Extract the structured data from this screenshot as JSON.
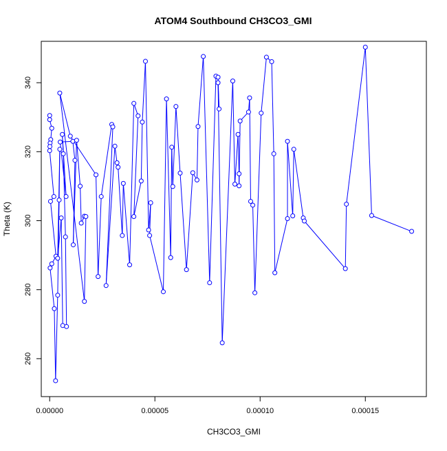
{
  "chart_data": {
    "type": "line",
    "title": "ATOM4 Southbound CH3CO3_GMI",
    "xlabel": "CH3CO3_GMI",
    "ylabel": "Theta (K)",
    "xlim": [
      -4e-06,
      0.000179
    ],
    "ylim": [
      249,
      352
    ],
    "x_ticks": [
      0,
      5e-05,
      0.0001,
      0.00015
    ],
    "x_tick_labels": [
      "0.00000",
      "0.00005",
      "0.00010",
      "0.00015"
    ],
    "y_ticks": [
      260,
      280,
      300,
      320,
      340
    ],
    "y_tick_labels": [
      "260",
      "280",
      "300",
      "320",
      "340"
    ],
    "grid": false,
    "series": [
      {
        "color": "#0000ff",
        "marker": "open-circle",
        "line": true,
        "points": [
          [
            0.0,
            330.5
          ],
          [
            0.0,
            329.3
          ],
          [
            1e-06,
            326.8
          ],
          [
            5e-07,
            323.5
          ],
          [
            2e-07,
            322.5
          ],
          [
            1e-07,
            321.5
          ],
          [
            0.0,
            320.3
          ],
          [
            2e-06,
            307.0
          ],
          [
            4e-07,
            305.6
          ],
          [
            3e-06,
            289.7
          ],
          [
            1e-06,
            287.5
          ],
          [
            2e-07,
            286.3
          ],
          [
            2.2e-06,
            274.5
          ],
          [
            2.8e-06,
            253.6
          ],
          [
            3.8e-06,
            278.4
          ],
          [
            4.5e-06,
            306.0
          ],
          [
            4.8e-06,
            320.7
          ],
          [
            3.8e-06,
            289.1
          ],
          [
            5.5e-06,
            300.8
          ],
          [
            6.2e-06,
            269.6
          ],
          [
            8e-06,
            269.3
          ],
          [
            7.5e-06,
            295.3
          ],
          [
            6.5e-06,
            319.4
          ],
          [
            6e-06,
            325.0
          ],
          [
            7.8e-06,
            307.0
          ],
          [
            5e-06,
            322.8
          ],
          [
            1.1e-05,
            323.0
          ],
          [
            1.2e-05,
            317.5
          ],
          [
            1.12e-05,
            293.0
          ],
          [
            1.28e-05,
            323.3
          ],
          [
            1.45e-05,
            310.0
          ],
          [
            1.5e-05,
            299.3
          ],
          [
            1.65e-05,
            301.3
          ],
          [
            1.72e-05,
            301.2
          ],
          [
            1.65e-05,
            276.6
          ],
          [
            4.8e-06,
            337.0
          ],
          [
            9.8e-06,
            324.5
          ],
          [
            2.2e-05,
            313.3
          ],
          [
            2.3e-05,
            283.8
          ],
          [
            2.45e-05,
            307.0
          ],
          [
            2.95e-05,
            327.9
          ],
          [
            3e-05,
            327.2
          ],
          [
            2.68e-05,
            281.2
          ],
          [
            3.1e-05,
            321.6
          ],
          [
            3.2e-05,
            316.8
          ],
          [
            3.25e-05,
            315.5
          ],
          [
            3.45e-05,
            295.7
          ],
          [
            3.5e-05,
            310.8
          ],
          [
            3.8e-05,
            287.2
          ],
          [
            4e-05,
            334.0
          ],
          [
            4.2e-05,
            330.4
          ],
          [
            4e-05,
            301.2
          ],
          [
            4.35e-05,
            311.5
          ],
          [
            4.4e-05,
            328.6
          ],
          [
            4.55e-05,
            346.2
          ],
          [
            4.7e-05,
            297.3
          ],
          [
            4.8e-05,
            305.2
          ],
          [
            4.75e-05,
            295.7
          ],
          [
            5.4e-05,
            279.4
          ],
          [
            5.55e-05,
            335.3
          ],
          [
            5.75e-05,
            289.3
          ],
          [
            5.8e-05,
            321.3
          ],
          [
            5.85e-05,
            309.9
          ],
          [
            6e-05,
            333.1
          ],
          [
            6.2e-05,
            313.8
          ],
          [
            6.5e-05,
            285.8
          ],
          [
            6.8e-05,
            313.9
          ],
          [
            7e-05,
            311.8
          ],
          [
            7.05e-05,
            327.3
          ],
          [
            7.3e-05,
            347.6
          ],
          [
            7.6e-05,
            282.0
          ],
          [
            7.9e-05,
            341.9
          ],
          [
            8e-05,
            341.6
          ],
          [
            8.05e-05,
            332.4
          ],
          [
            8e-05,
            340.0
          ],
          [
            8.2e-05,
            264.6
          ],
          [
            8.7e-05,
            340.5
          ],
          [
            8.8e-05,
            310.6
          ],
          [
            8.95e-05,
            325.0
          ],
          [
            9e-05,
            313.6
          ],
          [
            9e-05,
            310.1
          ],
          [
            9.05e-05,
            328.9
          ],
          [
            9.45e-05,
            331.5
          ],
          [
            9.5e-05,
            335.6
          ],
          [
            9.55e-05,
            305.6
          ],
          [
            9.65e-05,
            304.5
          ],
          [
            9.75e-05,
            279.1
          ],
          [
            0.0001005,
            331.2
          ],
          [
            0.000103,
            347.4
          ],
          [
            0.0001055,
            346.1
          ],
          [
            0.0001065,
            319.4
          ],
          [
            0.000107,
            284.9
          ],
          [
            0.000113,
            300.6
          ],
          [
            0.000113,
            323.0
          ],
          [
            0.0001155,
            301.4
          ],
          [
            0.000116,
            320.7
          ],
          [
            0.0001205,
            300.8
          ],
          [
            0.000121,
            299.9
          ],
          [
            0.0001405,
            286.1
          ],
          [
            0.000141,
            304.8
          ],
          [
            0.00015,
            350.3
          ],
          [
            0.000153,
            301.5
          ],
          [
            0.000172,
            296.9
          ]
        ]
      }
    ]
  }
}
